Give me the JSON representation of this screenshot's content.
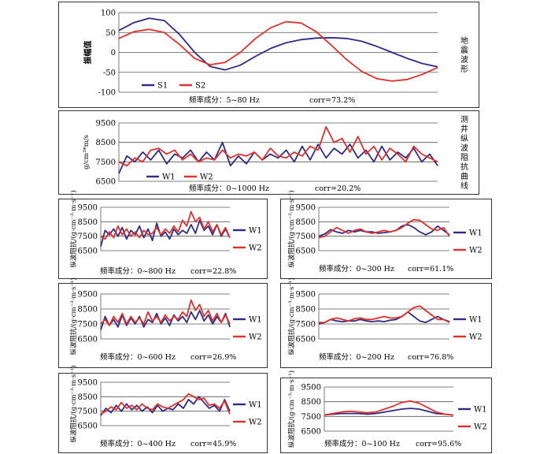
{
  "colors": {
    "series_blue": "#2e2a86",
    "series_red": "#e0302c",
    "grid": "#555555",
    "frame": "#333333"
  },
  "panels": [
    {
      "name": "seismic",
      "ylabel": "振幅值",
      "side_label": "地震波形",
      "legend": [
        "S1",
        "S2"
      ],
      "caption_freq": "频率成分：5~80 Hz",
      "caption_corr": "corr=73.2%"
    },
    {
      "name": "log-full",
      "ylabel": "g/cm³*m/s",
      "side_label": "测井纵波阻抗曲线",
      "legend": [
        "W1",
        "W2"
      ],
      "caption_freq": "频率成分：0~1000 Hz",
      "caption_corr": "corr=20.2%"
    },
    {
      "name": "log-800",
      "ylabel": "纵波阻抗/(g·cm⁻³·m·s⁻¹)",
      "legend": [
        "W1",
        "W2"
      ],
      "caption_freq": "频率成分：0~800 Hz",
      "caption_corr": "corr=22.8%"
    },
    {
      "name": "log-300",
      "ylabel": "纵波阻抗/(g·cm⁻³·m·s⁻¹)",
      "legend": [
        "W1",
        "W2"
      ],
      "caption_freq": "频率成分：0~300 Hz",
      "caption_corr": "corr=61.1%"
    },
    {
      "name": "log-600",
      "ylabel": "纵波阻抗/(g·cm⁻³·m·s⁻¹)",
      "legend": [
        "W1",
        "W2"
      ],
      "caption_freq": "频率成分：0~600 Hz",
      "caption_corr": "corr=26.9%"
    },
    {
      "name": "log-200",
      "ylabel": "纵波阻抗/(g·cm⁻³·m·s⁻¹)",
      "legend": [
        "W1",
        "W2"
      ],
      "caption_freq": "频率成分：0~200 Hz",
      "caption_corr": "corr=76.8%"
    },
    {
      "name": "log-400",
      "ylabel": "纵波阻抗/(g·cm⁻³·m·s⁻¹)",
      "legend": [
        "W1",
        "W2"
      ],
      "caption_freq": "频率成分：0~400 Hz",
      "caption_corr": "corr=45.9%"
    },
    {
      "name": "log-100",
      "ylabel": "纵波阻抗/(g·cm⁻³·m·s⁻¹)",
      "legend": [
        "W1",
        "W2"
      ],
      "caption_freq": "频率成分：0~100 Hz",
      "caption_corr": "corr=95.6%"
    }
  ],
  "chart_data": [
    {
      "type": "line",
      "ylim": [
        -100,
        100
      ],
      "yticks": [
        100,
        50,
        0,
        -50,
        -100
      ],
      "grid": true,
      "legend_position": "bottom-left",
      "series": [
        {
          "name": "S1",
          "values": [
            55,
            75,
            86,
            80,
            45,
            0,
            -35,
            -44,
            -32,
            -10,
            10,
            24,
            32,
            36,
            37,
            35,
            28,
            15,
            0,
            -15,
            -28,
            -36
          ]
        },
        {
          "name": "S2",
          "values": [
            35,
            52,
            58,
            50,
            20,
            -15,
            -31,
            -25,
            0,
            35,
            62,
            77,
            74,
            52,
            18,
            -18,
            -48,
            -66,
            -72,
            -68,
            -55,
            -38
          ]
        }
      ]
    },
    {
      "type": "line",
      "ylim": [
        6500,
        9500
      ],
      "yticks": [
        9500,
        8500,
        7500,
        6500
      ],
      "grid": true,
      "legend_position": "bottom-left",
      "series": [
        {
          "name": "W1",
          "values": [
            6900,
            7800,
            7500,
            8000,
            7600,
            8100,
            7400,
            7900,
            7700,
            8100,
            7500,
            8000,
            7600,
            8500,
            7300,
            7800,
            7400,
            8000,
            7600,
            7900,
            7700,
            8100,
            7500,
            8300,
            7600,
            8400,
            7700,
            8200,
            7900,
            8400,
            7700,
            8100,
            7500,
            8300,
            7600,
            8000,
            7700,
            8200,
            7500,
            7900,
            7300
          ]
        },
        {
          "name": "W2",
          "values": [
            7500,
            7300,
            7700,
            7500,
            8100,
            8200,
            7900,
            8100,
            7600,
            7900,
            7500,
            7700,
            7600,
            8100,
            7700,
            7900,
            7800,
            8000,
            7600,
            8200,
            7800,
            7700,
            8000,
            7800,
            8300,
            8100,
            9300,
            8500,
            8700,
            8000,
            8800,
            7900,
            8300,
            7600,
            8200,
            7900,
            7500,
            8300,
            7900,
            7700,
            7500
          ]
        }
      ]
    },
    {
      "type": "line",
      "ylim": [
        6500,
        9500
      ],
      "yticks": [
        9500,
        8500,
        7500,
        6500
      ],
      "grid": true,
      "legend_position": "right",
      "series": [
        {
          "name": "W1",
          "values": [
            6800,
            7900,
            7600,
            8000,
            7500,
            8100,
            7300,
            7900,
            7600,
            8200,
            7400,
            8000,
            7200,
            8400,
            7500,
            7800,
            7300,
            8000,
            7600,
            7900,
            7700,
            8300,
            7700,
            8600,
            7900,
            8200,
            7600,
            8300,
            7500,
            8000,
            7400
          ]
        },
        {
          "name": "W2",
          "values": [
            7500,
            7300,
            7800,
            7400,
            8200,
            7600,
            8000,
            7500,
            7800,
            7400,
            7900,
            7600,
            7700,
            8100,
            7600,
            8000,
            7700,
            8200,
            7800,
            8600,
            8200,
            9200,
            8500,
            8800,
            8000,
            8500,
            7800,
            8300,
            7600,
            8100,
            7400
          ]
        }
      ]
    },
    {
      "type": "line",
      "ylim": [
        6500,
        9500
      ],
      "yticks": [
        9500,
        8500,
        7500,
        6500
      ],
      "grid": true,
      "legend_position": "right",
      "series": [
        {
          "name": "W1",
          "values": [
            7500,
            7650,
            7950,
            7800,
            7700,
            7900,
            7800,
            7900,
            7800,
            7800,
            7700,
            7750,
            7800,
            7900,
            8200,
            8300,
            8100,
            7800,
            7600,
            7800,
            8200,
            7900,
            7600
          ]
        },
        {
          "name": "W2",
          "values": [
            7400,
            7500,
            7800,
            8100,
            7900,
            7700,
            7900,
            8000,
            7800,
            7700,
            7800,
            7900,
            7800,
            7900,
            8100,
            8400,
            8650,
            8600,
            8300,
            8000,
            7900,
            8100,
            7500
          ]
        }
      ]
    },
    {
      "type": "line",
      "ylim": [
        6500,
        9500
      ],
      "yticks": [
        9500,
        8500,
        7500,
        6500
      ],
      "grid": true,
      "legend_position": "right",
      "series": [
        {
          "name": "W1",
          "values": [
            7100,
            8000,
            7400,
            7800,
            7300,
            8100,
            7400,
            7900,
            7500,
            8000,
            7300,
            7800,
            7600,
            8200,
            7500,
            7900,
            7400,
            8100,
            7700,
            8000,
            7600,
            8300,
            7800,
            8400,
            7700,
            8100,
            7500,
            8000,
            7600,
            8200,
            7300
          ]
        },
        {
          "name": "W2",
          "values": [
            7500,
            7800,
            7400,
            8000,
            7600,
            8200,
            7500,
            8000,
            7600,
            7900,
            7500,
            8300,
            7700,
            8000,
            7600,
            8100,
            7700,
            8000,
            7800,
            8300,
            8000,
            9100,
            8400,
            8800,
            8000,
            8400,
            7700,
            8200,
            7600,
            8100,
            7500
          ]
        }
      ]
    },
    {
      "type": "line",
      "ylim": [
        6500,
        9500
      ],
      "yticks": [
        9500,
        8500,
        7500,
        6500
      ],
      "grid": true,
      "legend_position": "right",
      "series": [
        {
          "name": "W1",
          "values": [
            7500,
            7600,
            7800,
            7700,
            7650,
            7700,
            7700,
            7800,
            7700,
            7650,
            7700,
            7650,
            7750,
            7800,
            8000,
            8300,
            8000,
            7700,
            7600,
            7800,
            8000,
            7800,
            7650
          ]
        },
        {
          "name": "W2",
          "values": [
            7600,
            7600,
            7800,
            7900,
            7800,
            7700,
            7850,
            7900,
            7800,
            7800,
            7900,
            8000,
            7900,
            7900,
            8000,
            8300,
            8600,
            8700,
            8400,
            8100,
            7800,
            7800,
            7600
          ]
        }
      ]
    },
    {
      "type": "line",
      "ylim": [
        6500,
        9500
      ],
      "yticks": [
        9500,
        8500,
        7500,
        6500
      ],
      "grid": true,
      "legend_position": "right",
      "series": [
        {
          "name": "W1",
          "values": [
            7200,
            7700,
            7400,
            7900,
            7500,
            8000,
            7600,
            7900,
            7500,
            7800,
            7400,
            7900,
            7500,
            7700,
            7600,
            8000,
            7700,
            8300,
            8000,
            8500,
            8100,
            7700,
            7900,
            7500,
            8300,
            7500
          ]
        },
        {
          "name": "W2",
          "values": [
            7300,
            7500,
            7800,
            7600,
            8100,
            7700,
            7900,
            7600,
            8000,
            7700,
            7600,
            8000,
            7800,
            7700,
            7900,
            8100,
            8300,
            8700,
            8500,
            8300,
            8400,
            7900,
            8000,
            7700,
            8200,
            7300
          ]
        }
      ]
    },
    {
      "type": "line",
      "ylim": [
        6500,
        9500
      ],
      "yticks": [
        9500,
        8500,
        7500,
        6500
      ],
      "grid": true,
      "legend_position": "right",
      "series": [
        {
          "name": "W1",
          "values": [
            7600,
            7650,
            7700,
            7700,
            7700,
            7650,
            7700,
            7800,
            7900,
            8000,
            8050,
            8000,
            7850,
            7700,
            7650,
            7600
          ]
        },
        {
          "name": "W2",
          "values": [
            7600,
            7700,
            7800,
            7850,
            7800,
            7750,
            7800,
            8000,
            8200,
            8450,
            8550,
            8400,
            8100,
            7800,
            7650,
            7600
          ]
        }
      ]
    }
  ]
}
